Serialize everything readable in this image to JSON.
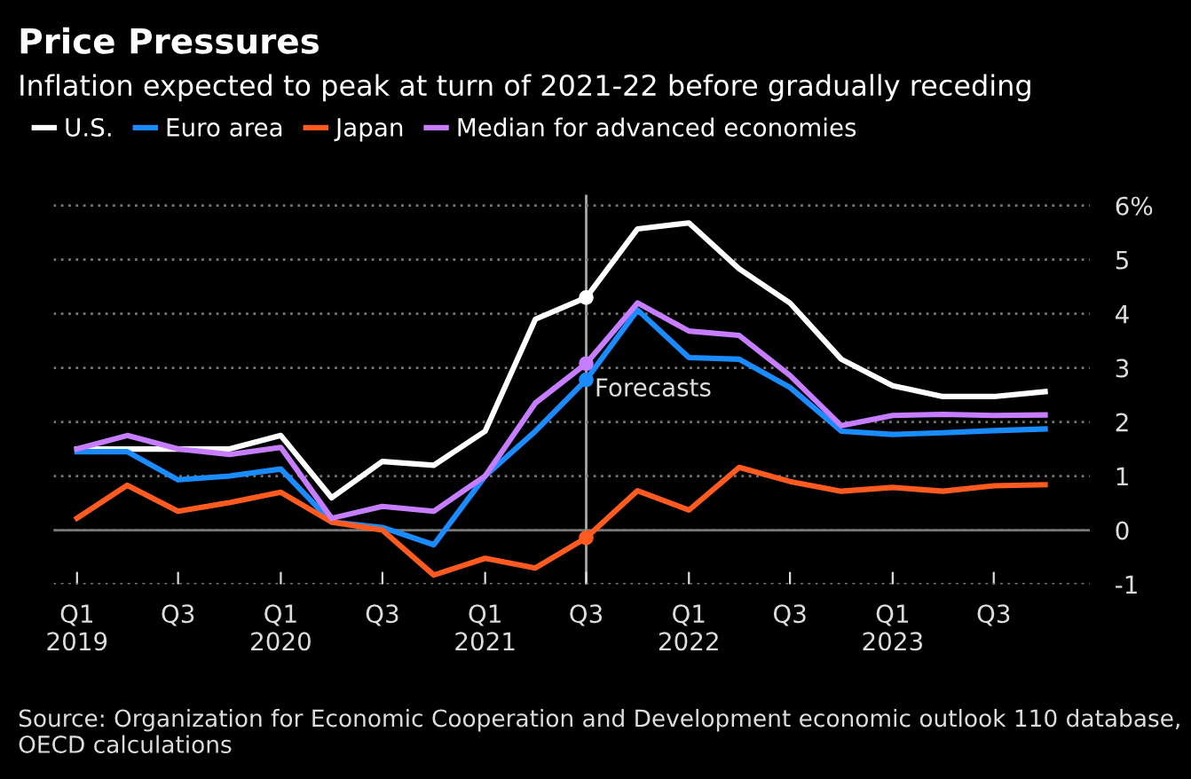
{
  "chart_data": {
    "type": "line",
    "title": "Price Pressures",
    "subtitle": "Inflation expected to peak at turn of 2021-22 before gradually receding",
    "x": [
      "2019-01",
      "2019-04",
      "2019-07",
      "2019-10",
      "2020-01",
      "2020-04",
      "2020-07",
      "2020-10",
      "2021-01",
      "2021-04",
      "2021-07",
      "2021-10",
      "2022-01",
      "2022-04",
      "2022-07",
      "2022-10",
      "2023-01",
      "2023-04",
      "2023-07",
      "2023-10"
    ],
    "series": [
      {
        "name": "U.S.",
        "color": "#ffffff",
        "values": [
          1.5,
          1.5,
          1.5,
          1.5,
          1.75,
          0.6,
          1.27,
          1.2,
          1.83,
          3.9,
          4.3,
          5.57,
          5.68,
          4.83,
          4.2,
          3.16,
          2.67,
          2.47,
          2.47,
          2.56
        ]
      },
      {
        "name": "Euro area",
        "color": "#1a8cff",
        "values": [
          1.45,
          1.45,
          0.93,
          1.0,
          1.13,
          0.15,
          0.05,
          -0.27,
          1.0,
          1.83,
          2.78,
          4.07,
          3.19,
          3.16,
          2.64,
          1.83,
          1.77,
          1.8,
          1.84,
          1.87
        ]
      },
      {
        "name": "Japan",
        "color": "#ff5a1f",
        "values": [
          0.22,
          0.83,
          0.35,
          0.51,
          0.7,
          0.15,
          0.0,
          -0.83,
          -0.52,
          -0.7,
          -0.14,
          0.73,
          0.37,
          1.16,
          0.9,
          0.72,
          0.79,
          0.72,
          0.82,
          0.84
        ]
      },
      {
        "name": "Median for advanced economies",
        "color": "#c77dff",
        "values": [
          1.5,
          1.75,
          1.5,
          1.4,
          1.53,
          0.22,
          0.44,
          0.35,
          1.0,
          2.35,
          3.08,
          4.2,
          3.68,
          3.6,
          2.86,
          1.93,
          2.12,
          2.14,
          2.12,
          2.13
        ]
      }
    ],
    "xlim": [
      "2018-11-20",
      "2023-12-20"
    ],
    "xticks": [
      {
        "value": "2019-01",
        "label": "Q1\n2019"
      },
      {
        "value": "2019-07",
        "label": "Q3"
      },
      {
        "value": "2020-01",
        "label": "Q1\n2020"
      },
      {
        "value": "2020-07",
        "label": "Q3"
      },
      {
        "value": "2021-01",
        "label": "Q1\n2021"
      },
      {
        "value": "2021-07",
        "label": "Q3"
      },
      {
        "value": "2022-01",
        "label": "Q1\n2022"
      },
      {
        "value": "2022-07",
        "label": "Q3"
      },
      {
        "value": "2023-01",
        "label": "Q1\n2023"
      },
      {
        "value": "2023-07",
        "label": "Q3"
      }
    ],
    "ylim": [
      -1,
      6.2
    ],
    "yticks": [
      {
        "value": 6,
        "label": "6%"
      },
      5,
      4,
      3,
      2,
      1,
      0,
      -1
    ],
    "grid": "y",
    "legend": "top left",
    "ref_lines": [
      {
        "axis": "x",
        "value": "2021-07",
        "label": "Forecasts",
        "color": "#aaaaaa"
      }
    ],
    "annotations": [
      "Source: Organization for Economic Cooperation and Development economic outlook 110 database, OECD calculations"
    ]
  }
}
